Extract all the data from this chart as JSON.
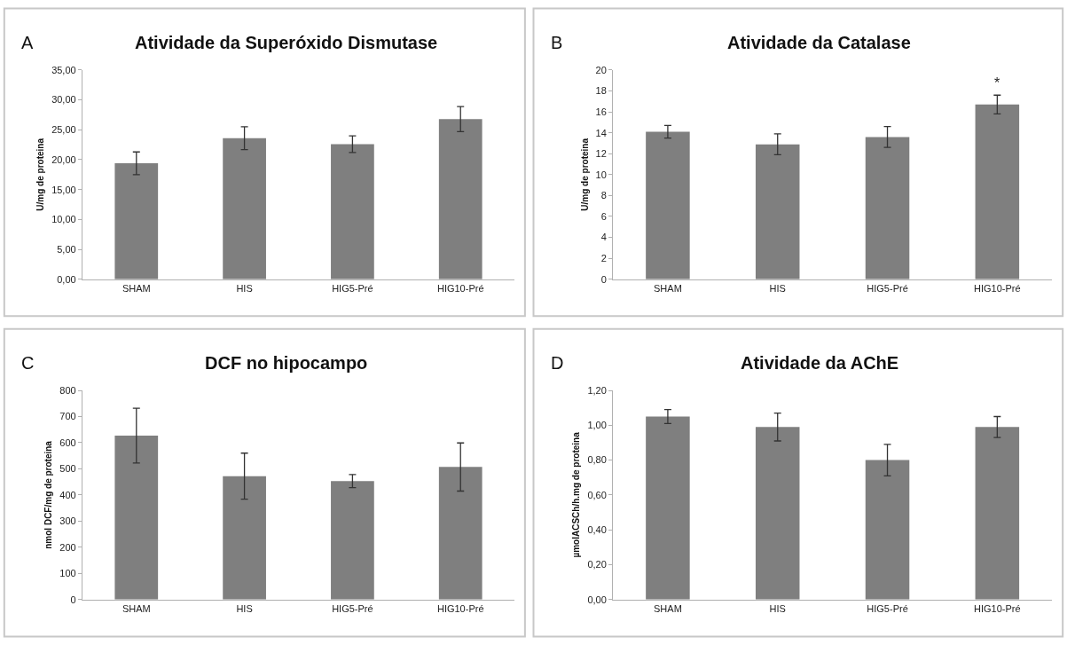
{
  "chart_data": [
    {
      "type": "bar",
      "title": "Atividade da Superóxido Dismutase",
      "ylabel": "U/mg de proteina",
      "annotations": [
        "A"
      ],
      "categories": [
        "SHAM",
        "HIS",
        "HIG5-Pré",
        "HIG10-Pré"
      ],
      "values": [
        19.4,
        23.6,
        22.6,
        26.8
      ],
      "errors": [
        1.9,
        1.9,
        1.4,
        2.1
      ],
      "color": "#7f7f7f",
      "ylim": [
        0,
        35
      ],
      "yticks": [
        {
          "value": 0,
          "label": "0,00"
        },
        {
          "value": 5,
          "label": "5,00"
        },
        {
          "value": 10,
          "label": "10,00"
        },
        {
          "value": 15,
          "label": "15,00"
        },
        {
          "value": 20,
          "label": "20,00"
        },
        {
          "value": 25,
          "label": "25,00"
        },
        {
          "value": 30,
          "label": "30,00"
        },
        {
          "value": 35,
          "label": "35,00"
        }
      ],
      "grid": false
    },
    {
      "type": "bar",
      "title": "Atividade da Catalase",
      "ylabel": "U/mg de proteina",
      "annotations": [
        "B",
        {
          "text": "*",
          "x": "HIG10-Pré",
          "y": 17.9
        }
      ],
      "categories": [
        "SHAM",
        "HIS",
        "HIG5-Pré",
        "HIG10-Pré"
      ],
      "values": [
        14.1,
        12.9,
        13.6,
        16.7
      ],
      "errors": [
        0.6,
        1.0,
        1.0,
        0.9
      ],
      "color": "#7f7f7f",
      "ylim": [
        0,
        20
      ],
      "yticks": [
        0,
        2,
        4,
        6,
        8,
        10,
        12,
        14,
        16,
        18,
        20
      ],
      "grid": false
    },
    {
      "type": "bar",
      "title": "DCF no hipocampo",
      "ylabel": "nmol DCF/mg de proteina",
      "annotations": [
        "C"
      ],
      "categories": [
        "SHAM",
        "HIS",
        "HIG5-Pré",
        "HIG10-Pré"
      ],
      "values": [
        627,
        472,
        453,
        507
      ],
      "errors": [
        105,
        88,
        25,
        92
      ],
      "color": "#7f7f7f",
      "ylim": [
        0,
        800
      ],
      "yticks": [
        0,
        100,
        200,
        300,
        400,
        500,
        600,
        700,
        800
      ],
      "grid": false
    },
    {
      "type": "bar",
      "title": "Atividade da AChE",
      "ylabel": "µmolACSCh/h.mg de proteina",
      "annotations": [
        "D"
      ],
      "categories": [
        "SHAM",
        "HIS",
        "HIG5-Pré",
        "HIG10-Pré"
      ],
      "values": [
        1.05,
        0.99,
        0.8,
        0.99
      ],
      "errors": [
        0.04,
        0.08,
        0.09,
        0.06
      ],
      "color": "#7f7f7f",
      "ylim": [
        0,
        1.2
      ],
      "yticks": [
        {
          "value": 0,
          "label": "0,00"
        },
        {
          "value": 0.2,
          "label": "0,20"
        },
        {
          "value": 0.4,
          "label": "0,40"
        },
        {
          "value": 0.6,
          "label": "0,60"
        },
        {
          "value": 0.8,
          "label": "0,80"
        },
        {
          "value": 1.0,
          "label": "1,00"
        },
        {
          "value": 1.2,
          "label": "1,20"
        }
      ],
      "grid": false
    }
  ]
}
